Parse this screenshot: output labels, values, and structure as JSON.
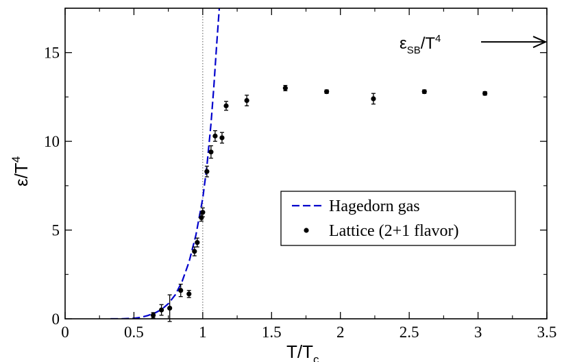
{
  "chart_data": {
    "type": "scatter",
    "xlabel": {
      "main": "T/T",
      "sub": "c"
    },
    "ylabel": {
      "main": "ε/T",
      "sup": "4"
    },
    "xlim": [
      0,
      3.5
    ],
    "ylim": [
      0,
      17.5
    ],
    "x_ticks": [
      0,
      0.5,
      1,
      1.5,
      2,
      2.5,
      3,
      3.5
    ],
    "x_tick_labels": [
      "0",
      "0.5",
      "1",
      "1.5",
      "2",
      "2.5",
      "3",
      "3.5"
    ],
    "y_ticks": [
      0,
      5,
      10,
      15
    ],
    "y_tick_labels": [
      "0",
      "5",
      "10",
      "15"
    ],
    "grid": false,
    "reference_line": {
      "x": 1,
      "style": "dotted"
    },
    "legend": {
      "placement": "center-right",
      "entries": [
        {
          "label": "Hagedorn gas",
          "marker": "dashed-line",
          "color": "#0000cc"
        },
        {
          "label": "Lattice (2+1 flavor)",
          "marker": "dot",
          "color": "#000000"
        }
      ]
    },
    "annotation": {
      "main": "ε",
      "sub": "SB",
      "rest": "/T",
      "sup": "4",
      "arrow_value": 15.6
    },
    "series": [
      {
        "name": "Hagedorn gas",
        "style": "dashed",
        "color": "#0000cc",
        "x": [
          0.33,
          0.4,
          0.5,
          0.55,
          0.6,
          0.65,
          0.7,
          0.75,
          0.8,
          0.85,
          0.9,
          0.95,
          1.0,
          1.03,
          1.06,
          1.08,
          1.1,
          1.12
        ],
        "y": [
          0.0,
          0.0,
          0.03,
          0.08,
          0.18,
          0.32,
          0.52,
          0.85,
          1.35,
          2.1,
          3.2,
          4.7,
          6.8,
          8.6,
          11.0,
          13.0,
          15.3,
          17.5
        ]
      },
      {
        "name": "Lattice (2+1 flavor)",
        "style": "points",
        "color": "#000000",
        "x": [
          0.64,
          0.7,
          0.76,
          0.84,
          0.9,
          0.94,
          0.96,
          0.99,
          1.0,
          1.03,
          1.06,
          1.09,
          1.14,
          1.17,
          1.32,
          1.6,
          1.9,
          2.24,
          2.61,
          3.05
        ],
        "y": [
          0.2,
          0.5,
          0.6,
          1.6,
          1.4,
          3.8,
          4.3,
          5.7,
          6.0,
          8.3,
          9.4,
          10.3,
          10.2,
          12.0,
          12.3,
          13.0,
          12.8,
          12.4,
          12.8,
          12.7
        ],
        "err": [
          0.15,
          0.3,
          0.75,
          0.35,
          0.2,
          0.25,
          0.25,
          0.2,
          0.25,
          0.3,
          0.35,
          0.3,
          0.3,
          0.25,
          0.3,
          0.15,
          0.1,
          0.3,
          0.1,
          0.1
        ]
      }
    ]
  }
}
